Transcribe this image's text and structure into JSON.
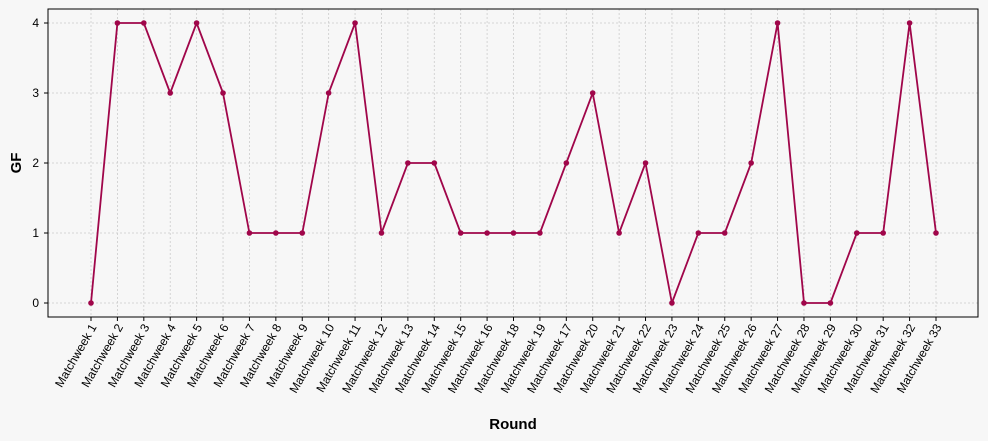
{
  "chart_data": {
    "type": "line",
    "title": "",
    "xlabel": "Round",
    "ylabel": "GF",
    "ylim": [
      -0.2,
      4.2
    ],
    "yticks": [
      0,
      1,
      2,
      3,
      4
    ],
    "grid": true,
    "colors": {
      "line": "#a0064a",
      "background": "#f7f7f7",
      "grid": "#cccccc"
    },
    "categories": [
      "Matchweek 1",
      "Matchweek 2",
      "Matchweek 3",
      "Matchweek 4",
      "Matchweek 5",
      "Matchweek 6",
      "Matchweek 7",
      "Matchweek 8",
      "Matchweek 9",
      "Matchweek 10",
      "Matchweek 11",
      "Matchweek 12",
      "Matchweek 13",
      "Matchweek 14",
      "Matchweek 15",
      "Matchweek 16",
      "Matchweek 18",
      "Matchweek 19",
      "Matchweek 17",
      "Matchweek 20",
      "Matchweek 21",
      "Matchweek 22",
      "Matchweek 23",
      "Matchweek 24",
      "Matchweek 25",
      "Matchweek 26",
      "Matchweek 27",
      "Matchweek 28",
      "Matchweek 29",
      "Matchweek 30",
      "Matchweek 31",
      "Matchweek 32",
      "Matchweek 33"
    ],
    "series": [
      {
        "values": [
          0,
          4,
          4,
          3,
          4,
          3,
          1,
          1,
          1,
          3,
          4,
          1,
          2,
          2,
          1,
          1,
          1,
          1,
          2,
          3,
          1,
          2,
          0,
          1,
          1,
          2,
          4,
          0,
          0,
          1,
          1,
          4,
          1
        ]
      }
    ]
  }
}
